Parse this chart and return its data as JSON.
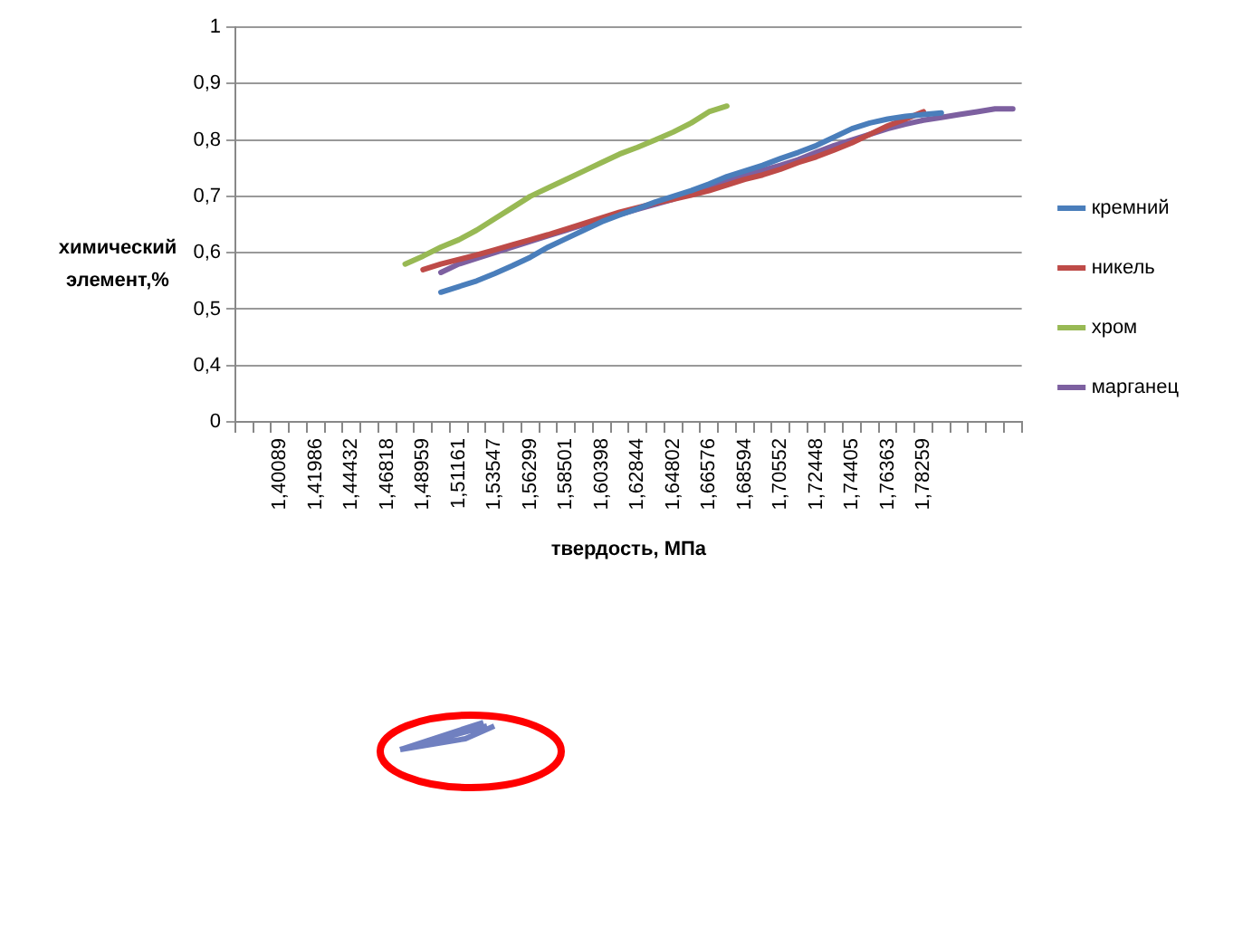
{
  "chart_data": {
    "type": "line",
    "xlabel": "твердость, МПа",
    "ylabel": "химический элемент,%",
    "categories": [
      null,
      null,
      "1,40089",
      null,
      "1,41986",
      null,
      "1,44432",
      null,
      "1,46818",
      null,
      "1,48959",
      null,
      "1,51161",
      null,
      "1,53547",
      null,
      "1,56299",
      null,
      "1,58501",
      null,
      "1,60398",
      null,
      "1,62844",
      null,
      "1,64802",
      null,
      "1,66576",
      null,
      "1,68594",
      null,
      "1,70552",
      null,
      "1,72448",
      null,
      "1,74405",
      null,
      "1,76363",
      null,
      "1,78259",
      null,
      null,
      null,
      null,
      null
    ],
    "series": [
      {
        "name": "кремний",
        "color": "#4a7ebb",
        "values": [
          null,
          null,
          null,
          null,
          null,
          null,
          null,
          null,
          null,
          null,
          null,
          0.53,
          0.54,
          0.55,
          0.563,
          0.577,
          0.592,
          0.61,
          0.625,
          0.64,
          0.655,
          0.667,
          0.678,
          0.69,
          0.7,
          0.71,
          0.722,
          0.735,
          0.745,
          0.755,
          0.767,
          0.778,
          0.79,
          0.805,
          0.82,
          0.83,
          0.837,
          0.842,
          0.845,
          0.848,
          null,
          null,
          null,
          null
        ]
      },
      {
        "name": "никель",
        "color": "#be4b48",
        "values": [
          null,
          null,
          null,
          null,
          null,
          null,
          null,
          null,
          null,
          null,
          0.57,
          0.58,
          0.588,
          0.596,
          0.605,
          0.614,
          0.623,
          0.632,
          0.642,
          0.652,
          0.662,
          0.672,
          0.68,
          0.688,
          0.695,
          0.702,
          0.71,
          0.72,
          0.73,
          0.738,
          0.748,
          0.76,
          0.77,
          0.782,
          0.795,
          0.81,
          0.825,
          0.837,
          0.85,
          null,
          null,
          null,
          null,
          null
        ]
      },
      {
        "name": "хром",
        "color": "#98b954",
        "values": [
          null,
          null,
          null,
          null,
          null,
          null,
          null,
          null,
          null,
          0.58,
          0.594,
          0.61,
          0.623,
          0.64,
          0.66,
          0.68,
          0.7,
          0.715,
          0.73,
          0.745,
          0.76,
          0.775,
          0.787,
          0.8,
          0.814,
          0.83,
          0.85,
          0.86,
          null,
          null,
          null,
          null,
          null,
          null,
          null,
          null,
          null,
          null,
          null,
          null,
          null,
          null,
          null,
          null
        ]
      },
      {
        "name": "марганец",
        "color": "#7d60a0",
        "values": [
          null,
          null,
          null,
          null,
          null,
          null,
          null,
          null,
          null,
          null,
          null,
          0.565,
          0.58,
          0.59,
          0.6,
          0.61,
          0.62,
          0.63,
          0.64,
          0.65,
          0.66,
          0.668,
          0.677,
          0.686,
          0.695,
          0.705,
          0.716,
          0.727,
          0.737,
          0.746,
          0.755,
          0.765,
          0.778,
          0.79,
          0.8,
          0.81,
          0.82,
          0.828,
          0.835,
          0.84,
          0.845,
          0.85,
          0.855,
          0.855
        ]
      }
    ],
    "ylim": [
      0.3,
      1
    ],
    "yticks": [
      {
        "value": 0.3,
        "label": "0"
      },
      {
        "value": 0.4,
        "label": "0,4"
      },
      {
        "value": 0.5,
        "label": "0,5"
      },
      {
        "value": 0.6,
        "label": "0,6"
      },
      {
        "value": 0.7,
        "label": "0,7"
      },
      {
        "value": 0.8,
        "label": "0,8"
      },
      {
        "value": 0.9,
        "label": "0,9"
      },
      1
    ],
    "grid": "y",
    "legend": "right",
    "marker": "none",
    "line_style": "solid"
  }
}
